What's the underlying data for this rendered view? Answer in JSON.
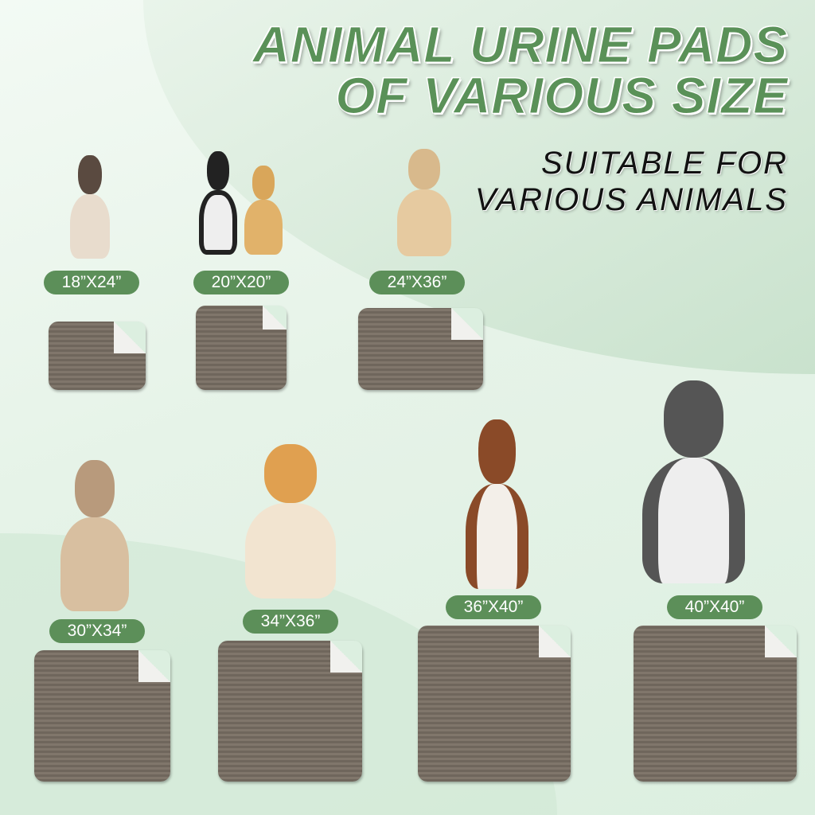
{
  "title": {
    "line1": "ANIMAL URINE PADS",
    "line2": "OF VARIOUS SIZE"
  },
  "subtitle": {
    "line1": "SUITABLE FOR",
    "line2": "VARIOUS ANIMALS"
  },
  "colors": {
    "accent": "#5c8f59",
    "pad": "#756b60",
    "background": "#e6f3e8"
  },
  "sizes": [
    {
      "label": "18”X24”",
      "animal": "siamese-cat"
    },
    {
      "label": "20”X20”",
      "animal": "cat-and-puppy"
    },
    {
      "label": "24”X36”",
      "animal": "mixed-breed-dog"
    },
    {
      "label": "30”X34”",
      "animal": "pug"
    },
    {
      "label": "34”X36”",
      "animal": "corgi"
    },
    {
      "label": "36”X40”",
      "animal": "australian-shepherd"
    },
    {
      "label": "40”X40”",
      "animal": "husky"
    }
  ]
}
